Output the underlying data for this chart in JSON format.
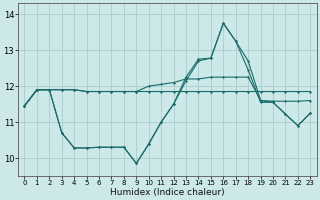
{
  "title": "",
  "xlabel": "Humidex (Indice chaleur)",
  "bg_color": "#cce8e8",
  "grid_color": "#aacccc",
  "line_color": "#1a6b6b",
  "xlim": [
    -0.5,
    23.5
  ],
  "ylim": [
    9.5,
    14.3
  ],
  "yticks": [
    10,
    11,
    12,
    13,
    14
  ],
  "xticks": [
    0,
    1,
    2,
    3,
    4,
    5,
    6,
    7,
    8,
    9,
    10,
    11,
    12,
    13,
    14,
    15,
    16,
    17,
    18,
    19,
    20,
    21,
    22,
    23
  ],
  "series": [
    [
      11.45,
      11.9,
      11.9,
      11.9,
      11.9,
      11.85,
      11.85,
      11.85,
      11.85,
      11.85,
      12.0,
      12.05,
      12.1,
      12.2,
      12.2,
      12.25,
      12.25,
      12.25,
      12.25,
      11.6,
      11.58,
      11.58,
      11.58,
      11.6
    ],
    [
      11.45,
      11.9,
      11.9,
      11.9,
      11.9,
      11.85,
      11.85,
      11.85,
      11.85,
      11.85,
      11.85,
      11.85,
      11.85,
      11.85,
      11.85,
      11.85,
      11.85,
      11.85,
      11.85,
      11.85,
      11.85,
      11.85,
      11.85,
      11.85
    ],
    [
      11.45,
      11.9,
      11.9,
      10.7,
      10.28,
      10.28,
      10.3,
      10.3,
      10.3,
      9.85,
      10.4,
      11.0,
      11.5,
      12.25,
      12.75,
      12.78,
      13.75,
      13.25,
      12.7,
      11.6,
      11.55,
      11.22,
      10.9,
      11.25
    ],
    [
      11.45,
      11.9,
      11.9,
      10.7,
      10.28,
      10.28,
      10.3,
      10.3,
      10.3,
      9.85,
      10.38,
      11.0,
      11.5,
      12.15,
      12.7,
      12.78,
      13.75,
      13.25,
      12.45,
      11.55,
      11.55,
      11.22,
      10.9,
      11.25
    ]
  ]
}
